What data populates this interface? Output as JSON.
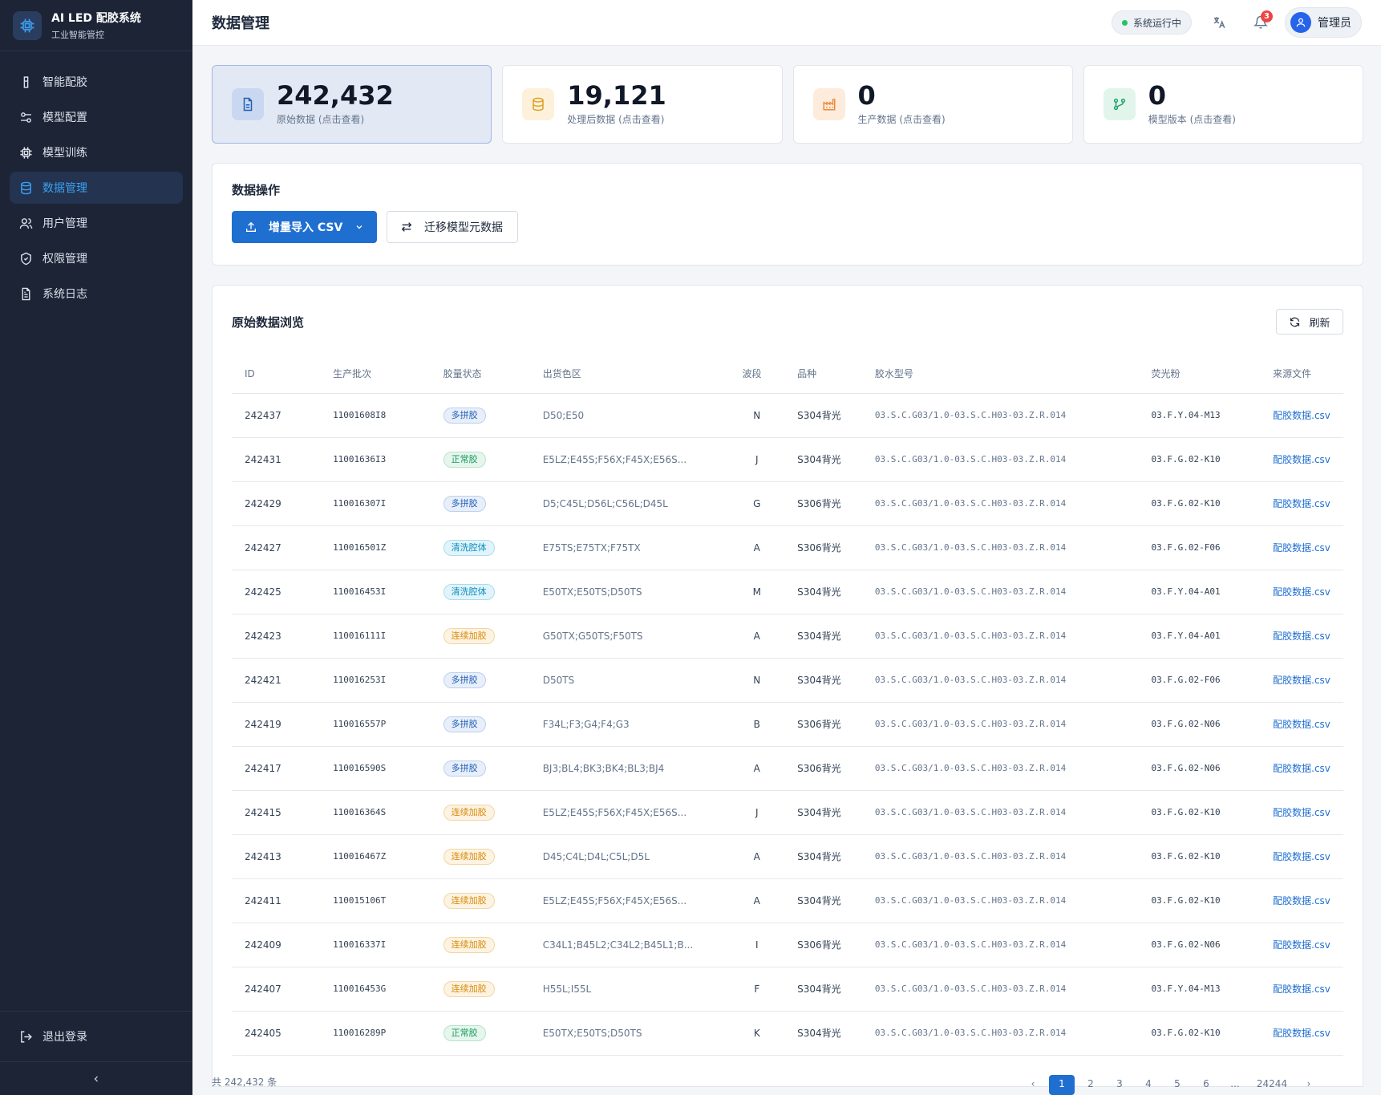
{
  "brand": {
    "title": "AI LED 配胶系统",
    "subtitle": "工业智能管控"
  },
  "nav": [
    {
      "label": "智能配胶",
      "icon": "beaker-icon"
    },
    {
      "label": "模型配置",
      "icon": "sliders-icon"
    },
    {
      "label": "模型训练",
      "icon": "cpu-icon"
    },
    {
      "label": "数据管理",
      "icon": "database-icon",
      "active": true
    },
    {
      "label": "用户管理",
      "icon": "users-icon"
    },
    {
      "label": "权限管理",
      "icon": "shield-icon"
    },
    {
      "label": "系统日志",
      "icon": "file-text-icon"
    }
  ],
  "sidebar": {
    "logout": "退出登录"
  },
  "header": {
    "title": "数据管理",
    "status": "系统运行中",
    "notifications": "3",
    "user": "管理员"
  },
  "stats": [
    {
      "value": "242,432",
      "label": "原始数据 (点击查看)"
    },
    {
      "value": "19,121",
      "label": "处理后数据 (点击查看)"
    },
    {
      "value": "0",
      "label": "生产数据 (点击查看)"
    },
    {
      "value": "0",
      "label": "模型版本 (点击查看)"
    }
  ],
  "ops": {
    "title": "数据操作",
    "import": "增量导入 CSV",
    "migrate": "迁移模型元数据"
  },
  "table": {
    "title": "原始数据浏览",
    "refresh": "刷新",
    "columns": [
      "ID",
      "生产批次",
      "胶量状态",
      "出货色区",
      "波段",
      "品种",
      "胶水型号",
      "荧光粉",
      "来源文件"
    ],
    "rows": [
      [
        "242437",
        "11001608I8",
        "多拼胶",
        "D50;E50",
        "N",
        "S304背光",
        "03.S.C.G03/1.0-03.S.C.H03-03.Z.R.014",
        "03.F.Y.04-M13",
        "配胶数据.csv"
      ],
      [
        "242431",
        "11001636I3",
        "正常胶",
        "E5LZ;E45S;F56X;F45X;E56S...",
        "J",
        "S304背光",
        "03.S.C.G03/1.0-03.S.C.H03-03.Z.R.014",
        "03.F.G.02-K10",
        "配胶数据.csv"
      ],
      [
        "242429",
        "110016307I",
        "多拼胶",
        "D5;C45L;D56L;C56L;D45L",
        "G",
        "S306背光",
        "03.S.C.G03/1.0-03.S.C.H03-03.Z.R.014",
        "03.F.G.02-K10",
        "配胶数据.csv"
      ],
      [
        "242427",
        "110016501Z",
        "清洗腔体",
        "E75TS;E75TX;F75TX",
        "A",
        "S306背光",
        "03.S.C.G03/1.0-03.S.C.H03-03.Z.R.014",
        "03.F.G.02-F06",
        "配胶数据.csv"
      ],
      [
        "242425",
        "110016453I",
        "清洗腔体",
        "E50TX;E50TS;D50TS",
        "M",
        "S304背光",
        "03.S.C.G03/1.0-03.S.C.H03-03.Z.R.014",
        "03.F.Y.04-A01",
        "配胶数据.csv"
      ],
      [
        "242423",
        "110016111I",
        "连续加胶",
        "G50TX;G50TS;F50TS",
        "A",
        "S304背光",
        "03.S.C.G03/1.0-03.S.C.H03-03.Z.R.014",
        "03.F.Y.04-A01",
        "配胶数据.csv"
      ],
      [
        "242421",
        "110016253I",
        "多拼胶",
        "D50TS",
        "N",
        "S304背光",
        "03.S.C.G03/1.0-03.S.C.H03-03.Z.R.014",
        "03.F.G.02-F06",
        "配胶数据.csv"
      ],
      [
        "242419",
        "110016557P",
        "多拼胶",
        "F34L;F3;G4;F4;G3",
        "B",
        "S306背光",
        "03.S.C.G03/1.0-03.S.C.H03-03.Z.R.014",
        "03.F.G.02-N06",
        "配胶数据.csv"
      ],
      [
        "242417",
        "110016590S",
        "多拼胶",
        "BJ3;BL4;BK3;BK4;BL3;BJ4",
        "A",
        "S306背光",
        "03.S.C.G03/1.0-03.S.C.H03-03.Z.R.014",
        "03.F.G.02-N06",
        "配胶数据.csv"
      ],
      [
        "242415",
        "110016364S",
        "连续加胶",
        "E5LZ;E45S;F56X;F45X;E56S...",
        "J",
        "S304背光",
        "03.S.C.G03/1.0-03.S.C.H03-03.Z.R.014",
        "03.F.G.02-K10",
        "配胶数据.csv"
      ],
      [
        "242413",
        "110016467Z",
        "连续加胶",
        "D45;C4L;D4L;C5L;D5L",
        "A",
        "S304背光",
        "03.S.C.G03/1.0-03.S.C.H03-03.Z.R.014",
        "03.F.G.02-K10",
        "配胶数据.csv"
      ],
      [
        "242411",
        "110015106T",
        "连续加胶",
        "E5LZ;E45S;F56X;F45X;E56S...",
        "A",
        "S304背光",
        "03.S.C.G03/1.0-03.S.C.H03-03.Z.R.014",
        "03.F.G.02-K10",
        "配胶数据.csv"
      ],
      [
        "242409",
        "110016337I",
        "连续加胶",
        "C34L1;B45L2;C34L2;B45L1;B...",
        "I",
        "S306背光",
        "03.S.C.G03/1.0-03.S.C.H03-03.Z.R.014",
        "03.F.G.02-N06",
        "配胶数据.csv"
      ],
      [
        "242407",
        "110016453G",
        "连续加胶",
        "H55L;I55L",
        "F",
        "S304背光",
        "03.S.C.G03/1.0-03.S.C.H03-03.Z.R.014",
        "03.F.Y.04-M13",
        "配胶数据.csv"
      ],
      [
        "242405",
        "110016289P",
        "正常胶",
        "E50TX;E50TS;D50TS",
        "K",
        "S304背光",
        "03.S.C.G03/1.0-03.S.C.H03-03.Z.R.014",
        "03.F.G.02-K10",
        "配胶数据.csv"
      ]
    ]
  },
  "pager": {
    "total": "共 242,432 条",
    "pages": [
      "1",
      "2",
      "3",
      "4",
      "5",
      "6",
      "...",
      "24244"
    ],
    "prev": "‹",
    "next": "›"
  },
  "colors": {
    "accent": "#1f6fd1",
    "sidebar": "#1c2436",
    "tag_多拼胶": "#1f5fb5",
    "tag_正常胶": "#169a5a",
    "tag_清洗腔体": "#0c8fbe",
    "tag_连续加胶": "#d88a08"
  }
}
